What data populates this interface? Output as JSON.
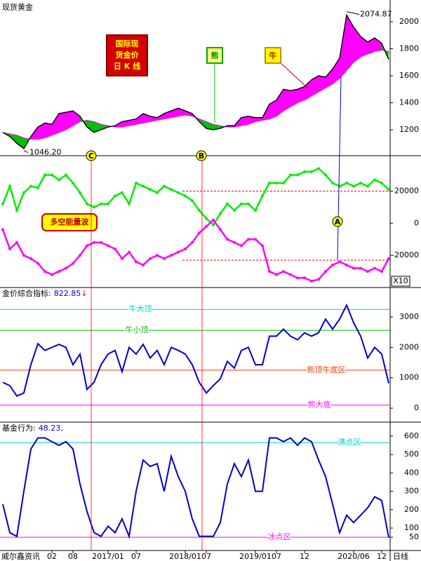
{
  "chart_data": [
    {
      "type": "price",
      "title": "现货黄金",
      "series": [
        {
          "color": "#000000",
          "values": [
            1180,
            1150,
            1100,
            1060,
            1150,
            1220,
            1250,
            1240,
            1320,
            1330,
            1340,
            1300,
            1220,
            1180,
            1200,
            1220,
            1230,
            1260,
            1270,
            1280,
            1320,
            1300,
            1290,
            1320,
            1340,
            1360,
            1340,
            1320,
            1260,
            1210,
            1200,
            1210,
            1230,
            1230,
            1290,
            1300,
            1290,
            1290,
            1390,
            1420,
            1500,
            1490,
            1500,
            1520,
            1570,
            1600,
            1590,
            1650,
            1730,
            2050,
            1960,
            1890,
            1850,
            1880,
            1840,
            1720
          ]
        },
        {
          "color": "#ff00ff",
          "values": [
            1180,
            1170,
            1160,
            1140,
            1130,
            1130,
            1140,
            1160,
            1180,
            1200,
            1230,
            1260,
            1270,
            1260,
            1240,
            1230,
            1220,
            1220,
            1230,
            1240,
            1250,
            1260,
            1270,
            1280,
            1290,
            1300,
            1310,
            1300,
            1280,
            1260,
            1240,
            1230,
            1220,
            1220,
            1230,
            1240,
            1260,
            1270,
            1280,
            1300,
            1340,
            1370,
            1400,
            1420,
            1450,
            1480,
            1510,
            1540,
            1580,
            1640,
            1700,
            1740,
            1760,
            1780,
            1790,
            1780
          ]
        }
      ],
      "fill_colors": [
        "#ff00ff",
        "#00c000"
      ],
      "ylim": [
        1008,
        2161
      ],
      "yticks": [
        1200,
        1400,
        1600,
        1800,
        2000
      ],
      "high": 2074.87,
      "low": {
        "value": 1046.2,
        "label": "1046.20"
      },
      "annotations": {
        "chart_name": [
          "国际现",
          "货金价",
          "日 K 线"
        ],
        "bear": "熊",
        "bull": "牛",
        "marker_c": "C",
        "marker_b": "B"
      }
    },
    {
      "type": "dual-line",
      "series": [
        {
          "color": "#00ee00",
          "values": [
            12000,
            23000,
            8000,
            19000,
            23000,
            22000,
            30000,
            30000,
            27000,
            30000,
            25000,
            19000,
            12000,
            10000,
            12000,
            12000,
            17000,
            19000,
            12000,
            25000,
            23000,
            21000,
            19000,
            23000,
            21000,
            19000,
            17000,
            14000,
            8000,
            3000,
            -1000,
            6000,
            12000,
            8000,
            12000,
            12000,
            8000,
            17000,
            25000,
            25000,
            25000,
            30000,
            30000,
            32000,
            32000,
            34000,
            30000,
            25000,
            23000,
            25000,
            23000,
            25000,
            23000,
            27000,
            25000,
            21000
          ]
        },
        {
          "color": "#ff00ff",
          "values": [
            -4000,
            -16000,
            -12000,
            -20000,
            -22000,
            -25000,
            -30000,
            -32000,
            -30000,
            -28000,
            -25000,
            -20000,
            -14000,
            -12000,
            -12000,
            -14000,
            -16000,
            -22000,
            -18000,
            -24000,
            -26000,
            -22000,
            -20000,
            -22000,
            -20000,
            -18000,
            -16000,
            -12000,
            -6000,
            -2000,
            2000,
            -4000,
            -10000,
            -12000,
            -14000,
            -10000,
            -10000,
            -14000,
            -30000,
            -32000,
            -30000,
            -32000,
            -34000,
            -34000,
            -36000,
            -35000,
            -30000,
            -26000,
            -24000,
            -26000,
            -28000,
            -28000,
            -30000,
            -28000,
            -30000,
            -22000
          ]
        }
      ],
      "ylim": [
        -40000,
        42000
      ],
      "yticks": [
        20000,
        0,
        -20000
      ],
      "levels": [
        {
          "value": 20000,
          "color": "#ff0000"
        },
        {
          "value": -23000,
          "color": "#ff0000"
        }
      ],
      "annotations": {
        "label": "多空能量波",
        "marker_a": "A",
        "scale": "X10"
      }
    },
    {
      "type": "line",
      "label": "金价综合指标:",
      "last_value": 822.85,
      "arrow": "↓",
      "color": "#0000cc",
      "values": [
        850,
        740,
        400,
        500,
        1430,
        2120,
        1900,
        2000,
        2100,
        2000,
        1430,
        1780,
        620,
        850,
        1430,
        1780,
        1900,
        1200,
        2000,
        1780,
        2100,
        1650,
        1900,
        1430,
        2000,
        1900,
        1780,
        1430,
        850,
        500,
        740,
        970,
        1540,
        1320,
        1900,
        2000,
        1430,
        1430,
        2370,
        2370,
        2600,
        2370,
        2250,
        2480,
        2370,
        2480,
        2930,
        2600,
        2930,
        3390,
        2810,
        2370,
        1650,
        2000,
        1780,
        822.85
      ],
      "ylim": [
        -460,
        3970
      ],
      "yticks": [
        0,
        1000,
        2000,
        3000
      ],
      "levels": [
        {
          "value": 3250,
          "label": "牛大顶",
          "color": "#00cccc"
        },
        {
          "value": 2560,
          "label": "牛小顶",
          "color": "#00bb00"
        },
        {
          "value": 1250,
          "label": "熊顶牛底区",
          "color": "#ff3300"
        },
        {
          "value": 100,
          "label": "熊大底",
          "color": "#ff00ff"
        }
      ]
    },
    {
      "type": "line",
      "label": "基金行为:",
      "last_value": {
        "value": 48.23,
        "label": "48.23,"
      },
      "color": "#0000cc",
      "values": [
        230,
        75,
        55,
        300,
        530,
        590,
        590,
        570,
        550,
        570,
        530,
        340,
        190,
        75,
        55,
        110,
        75,
        150,
        55,
        300,
        470,
        435,
        450,
        300,
        490,
        380,
        300,
        150,
        55,
        55,
        55,
        130,
        340,
        450,
        380,
        470,
        300,
        300,
        590,
        590,
        570,
        590,
        550,
        590,
        570,
        470,
        380,
        230,
        75,
        170,
        130,
        170,
        210,
        270,
        250,
        48.23
      ],
      "ylim": [
        -22,
        676
      ],
      "yticks": [
        50,
        100,
        200,
        300,
        400,
        500,
        600
      ],
      "levels": [
        {
          "value": 565,
          "label": "沸点区",
          "color": "#00cccc"
        },
        {
          "value": 50,
          "label": "冰点区",
          "color": "#ff00ff"
        }
      ],
      "categories": [
        null,
        null,
        null,
        null,
        null,
        null,
        null,
        "02",
        null,
        null,
        "08",
        null,
        null,
        null,
        null,
        "2017/01",
        null,
        null,
        null,
        "07",
        null,
        null,
        null,
        null,
        null,
        null,
        "2018/01",
        null,
        null,
        "07",
        null,
        null,
        null,
        null,
        null,
        null,
        "2019/01",
        null,
        null,
        "07",
        null,
        null,
        null,
        "12",
        null,
        null,
        null,
        null,
        null,
        null,
        "2020/06",
        null,
        null,
        null,
        "12",
        null
      ],
      "source": "威尔鑫资讯",
      "period": "日线"
    }
  ]
}
